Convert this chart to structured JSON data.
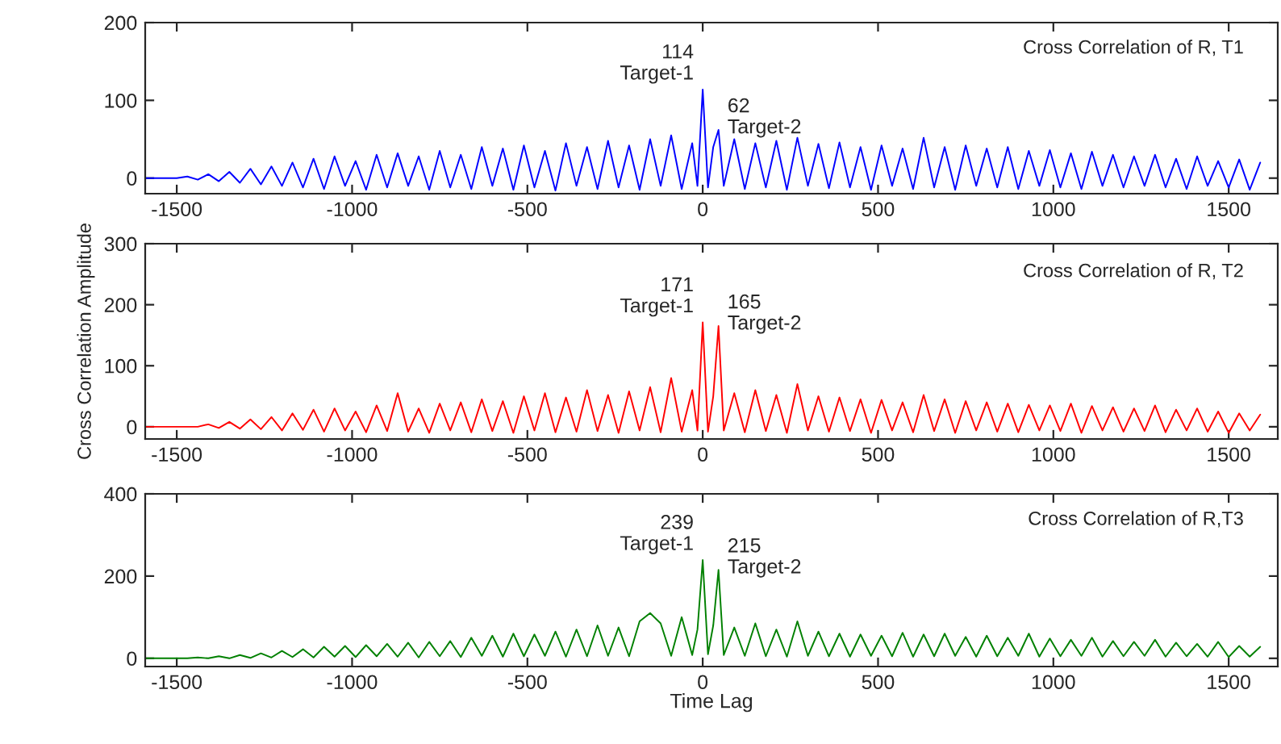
{
  "chart_data": [
    {
      "type": "line",
      "title": "Cross Correlation of R, T1",
      "xlim": [
        -1590,
        1640
      ],
      "ylim": [
        -20,
        200
      ],
      "xticks": [
        -1500,
        -1000,
        -500,
        0,
        500,
        1000,
        1500
      ],
      "yticks": [
        0,
        100,
        200
      ],
      "grid": false,
      "x": [
        -1590,
        -1500,
        -1470,
        -1440,
        -1410,
        -1380,
        -1350,
        -1320,
        -1290,
        -1260,
        -1230,
        -1200,
        -1170,
        -1140,
        -1110,
        -1080,
        -1050,
        -1020,
        -990,
        -960,
        -930,
        -900,
        -870,
        -840,
        -810,
        -780,
        -750,
        -720,
        -690,
        -660,
        -630,
        -600,
        -570,
        -540,
        -510,
        -480,
        -450,
        -420,
        -390,
        -360,
        -330,
        -300,
        -270,
        -240,
        -210,
        -180,
        -150,
        -120,
        -90,
        -60,
        -30,
        -15,
        0,
        15,
        30,
        45,
        60,
        90,
        120,
        150,
        180,
        210,
        240,
        270,
        300,
        330,
        360,
        390,
        420,
        450,
        480,
        510,
        540,
        570,
        600,
        630,
        660,
        690,
        720,
        750,
        780,
        810,
        840,
        870,
        900,
        930,
        960,
        990,
        1020,
        1050,
        1080,
        1110,
        1140,
        1170,
        1200,
        1230,
        1260,
        1290,
        1320,
        1350,
        1380,
        1410,
        1440,
        1470,
        1500,
        1530,
        1560,
        1590
      ],
      "series": [
        {
          "color": "#0000ff",
          "values": [
            0,
            0,
            2,
            -2,
            5,
            -4,
            8,
            -6,
            12,
            -8,
            15,
            -10,
            20,
            -12,
            25,
            -14,
            28,
            -10,
            22,
            -15,
            30,
            -12,
            32,
            -10,
            28,
            -15,
            35,
            -12,
            30,
            -14,
            40,
            -10,
            38,
            -15,
            42,
            -12,
            35,
            -16,
            45,
            -10,
            40,
            -14,
            48,
            -12,
            42,
            -15,
            50,
            -10,
            55,
            -14,
            45,
            -10,
            114,
            -12,
            40,
            62,
            -10,
            50,
            -14,
            45,
            -12,
            48,
            -15,
            52,
            -10,
            44,
            -13,
            46,
            -12,
            40,
            -15,
            42,
            -10,
            38,
            -14,
            52,
            -12,
            40,
            -15,
            42,
            -10,
            38,
            -12,
            40,
            -14,
            35,
            -10,
            36,
            -12,
            32,
            -14,
            34,
            -10,
            30,
            -12,
            28,
            -10,
            30,
            -12,
            25,
            -14,
            28,
            -10,
            22,
            -12,
            24,
            -15,
            20
          ]
        }
      ],
      "value_labels": [
        null,
        null,
        null,
        null,
        null,
        null,
        null,
        null,
        null,
        null,
        null,
        null,
        null,
        null,
        null,
        null,
        null,
        null,
        null,
        null,
        null,
        null,
        null,
        null,
        null,
        null,
        null,
        null,
        null,
        null,
        null,
        null,
        null,
        null,
        null,
        null,
        null,
        null,
        null,
        null,
        null,
        null,
        null,
        null,
        null,
        null,
        null,
        null,
        null,
        null,
        null,
        null,
        "114",
        null,
        null,
        "62",
        null,
        null,
        null,
        null,
        null,
        null,
        null,
        null,
        null,
        null,
        null,
        null,
        null,
        null,
        null,
        null,
        null,
        null,
        null,
        null,
        null,
        null,
        null,
        null,
        null,
        null,
        null,
        null,
        null,
        null,
        null,
        null,
        null,
        null,
        null,
        null,
        null,
        null,
        null,
        null,
        null,
        null,
        null,
        null,
        null,
        null,
        null,
        null,
        null,
        null,
        null,
        null
      ],
      "annotations": [
        "Target-1",
        "Target-2"
      ]
    },
    {
      "type": "line",
      "title": "Cross Correlation of R, T2",
      "ylabel": "Cross Correlation Amplitude",
      "xlim": [
        -1590,
        1640
      ],
      "ylim": [
        -20,
        300
      ],
      "xticks": [
        -1500,
        -1000,
        -500,
        0,
        500,
        1000,
        1500
      ],
      "yticks": [
        0,
        100,
        200,
        300
      ],
      "grid": false,
      "x": [
        -1590,
        -1500,
        -1470,
        -1440,
        -1410,
        -1380,
        -1350,
        -1320,
        -1290,
        -1260,
        -1230,
        -1200,
        -1170,
        -1140,
        -1110,
        -1080,
        -1050,
        -1020,
        -990,
        -960,
        -930,
        -900,
        -870,
        -840,
        -810,
        -780,
        -750,
        -720,
        -690,
        -660,
        -630,
        -600,
        -570,
        -540,
        -510,
        -480,
        -450,
        -420,
        -390,
        -360,
        -330,
        -300,
        -270,
        -240,
        -210,
        -180,
        -150,
        -120,
        -90,
        -60,
        -30,
        -15,
        0,
        15,
        30,
        45,
        60,
        90,
        120,
        150,
        180,
        210,
        240,
        270,
        300,
        330,
        360,
        390,
        420,
        450,
        480,
        510,
        540,
        570,
        600,
        630,
        660,
        690,
        720,
        750,
        780,
        810,
        840,
        870,
        900,
        930,
        960,
        990,
        1020,
        1050,
        1080,
        1110,
        1140,
        1170,
        1200,
        1230,
        1260,
        1290,
        1320,
        1350,
        1380,
        1410,
        1440,
        1470,
        1500,
        1530,
        1560,
        1590
      ],
      "series": [
        {
          "color": "#ff0000",
          "values": [
            0,
            0,
            0,
            0,
            4,
            -2,
            8,
            -3,
            12,
            -4,
            16,
            -6,
            22,
            -5,
            28,
            -8,
            30,
            -6,
            25,
            -9,
            35,
            -7,
            55,
            -8,
            30,
            -10,
            38,
            -6,
            40,
            -9,
            45,
            -7,
            42,
            -10,
            50,
            -6,
            55,
            -9,
            48,
            -8,
            60,
            -7,
            52,
            -10,
            58,
            -6,
            65,
            -9,
            80,
            -8,
            60,
            -6,
            171,
            -8,
            50,
            165,
            -6,
            55,
            -9,
            60,
            -7,
            52,
            -10,
            70,
            -6,
            50,
            -8,
            48,
            -7,
            45,
            -10,
            44,
            -6,
            40,
            -9,
            52,
            -7,
            45,
            -10,
            42,
            -6,
            40,
            -8,
            38,
            -9,
            36,
            -6,
            35,
            -7,
            38,
            -10,
            34,
            -6,
            32,
            -8,
            30,
            -7,
            35,
            -9,
            28,
            -6,
            30,
            -8,
            25,
            -10,
            22,
            -6,
            20
          ]
        }
      ],
      "value_labels": [
        null,
        null,
        null,
        null,
        null,
        null,
        null,
        null,
        null,
        null,
        null,
        null,
        null,
        null,
        null,
        null,
        null,
        null,
        null,
        null,
        null,
        null,
        null,
        null,
        null,
        null,
        null,
        null,
        null,
        null,
        null,
        null,
        null,
        null,
        null,
        null,
        null,
        null,
        null,
        null,
        null,
        null,
        null,
        null,
        null,
        null,
        null,
        null,
        null,
        null,
        null,
        null,
        "171",
        null,
        null,
        "165",
        null,
        null,
        null,
        null,
        null,
        null,
        null,
        null,
        null,
        null,
        null,
        null,
        null,
        null,
        null,
        null,
        null,
        null,
        null,
        null,
        null,
        null,
        null,
        null,
        null,
        null,
        null,
        null,
        null,
        null,
        null,
        null,
        null,
        null,
        null,
        null,
        null,
        null,
        null,
        null,
        null,
        null,
        null,
        null,
        null,
        null,
        null,
        null,
        null,
        null,
        null,
        null
      ],
      "annotations": [
        "Target-1",
        "Target-2"
      ]
    },
    {
      "type": "line",
      "title": "Cross Correlation of R,T3",
      "xlabel": "Time Lag",
      "xlim": [
        -1590,
        1640
      ],
      "ylim": [
        -20,
        400
      ],
      "xticks": [
        -1500,
        -1000,
        -500,
        0,
        500,
        1000,
        1500
      ],
      "yticks": [
        0,
        200,
        400
      ],
      "grid": false,
      "x": [
        -1590,
        -1500,
        -1470,
        -1440,
        -1410,
        -1380,
        -1350,
        -1320,
        -1290,
        -1260,
        -1230,
        -1200,
        -1170,
        -1140,
        -1110,
        -1080,
        -1050,
        -1020,
        -990,
        -960,
        -930,
        -900,
        -870,
        -840,
        -810,
        -780,
        -750,
        -720,
        -690,
        -660,
        -630,
        -600,
        -570,
        -540,
        -510,
        -480,
        -450,
        -420,
        -390,
        -360,
        -330,
        -300,
        -270,
        -240,
        -210,
        -180,
        -150,
        -120,
        -90,
        -60,
        -30,
        -15,
        0,
        15,
        30,
        45,
        60,
        90,
        120,
        150,
        180,
        210,
        240,
        270,
        300,
        330,
        360,
        390,
        420,
        450,
        480,
        510,
        540,
        570,
        600,
        630,
        660,
        690,
        720,
        750,
        780,
        810,
        840,
        870,
        900,
        930,
        960,
        990,
        1020,
        1050,
        1080,
        1110,
        1140,
        1170,
        1200,
        1230,
        1260,
        1290,
        1320,
        1350,
        1380,
        1410,
        1440,
        1470,
        1500,
        1530,
        1560,
        1590
      ],
      "series": [
        {
          "color": "#008000",
          "values": [
            0,
            0,
            0,
            2,
            0,
            5,
            0,
            8,
            1,
            12,
            2,
            18,
            3,
            22,
            2,
            28,
            4,
            30,
            3,
            32,
            5,
            35,
            4,
            38,
            2,
            40,
            5,
            42,
            3,
            50,
            6,
            55,
            4,
            60,
            5,
            58,
            6,
            65,
            4,
            70,
            5,
            80,
            6,
            75,
            5,
            90,
            110,
            85,
            6,
            100,
            8,
            70,
            239,
            10,
            80,
            215,
            8,
            75,
            6,
            85,
            5,
            70,
            4,
            90,
            6,
            65,
            5,
            60,
            4,
            58,
            6,
            55,
            5,
            62,
            4,
            58,
            5,
            60,
            6,
            52,
            4,
            55,
            5,
            50,
            6,
            60,
            4,
            48,
            5,
            45,
            6,
            50,
            4,
            42,
            5,
            40,
            6,
            45,
            4,
            38,
            5,
            35,
            4,
            40,
            3,
            30,
            4,
            28
          ]
        }
      ],
      "value_labels": [
        null,
        null,
        null,
        null,
        null,
        null,
        null,
        null,
        null,
        null,
        null,
        null,
        null,
        null,
        null,
        null,
        null,
        null,
        null,
        null,
        null,
        null,
        null,
        null,
        null,
        null,
        null,
        null,
        null,
        null,
        null,
        null,
        null,
        null,
        null,
        null,
        null,
        null,
        null,
        null,
        null,
        null,
        null,
        null,
        null,
        null,
        null,
        null,
        null,
        null,
        null,
        null,
        "239",
        null,
        null,
        "215",
        null,
        null,
        null,
        null,
        null,
        null,
        null,
        null,
        null,
        null,
        null,
        null,
        null,
        null,
        null,
        null,
        null,
        null,
        null,
        null,
        null,
        null,
        null,
        null,
        null,
        null,
        null,
        null,
        null,
        null,
        null,
        null,
        null,
        null,
        null,
        null,
        null,
        null,
        null,
        null,
        null,
        null,
        null,
        null,
        null,
        null,
        null,
        null,
        null,
        null,
        null,
        null
      ],
      "annotations": [
        "Target-1",
        "Target-2"
      ]
    }
  ]
}
